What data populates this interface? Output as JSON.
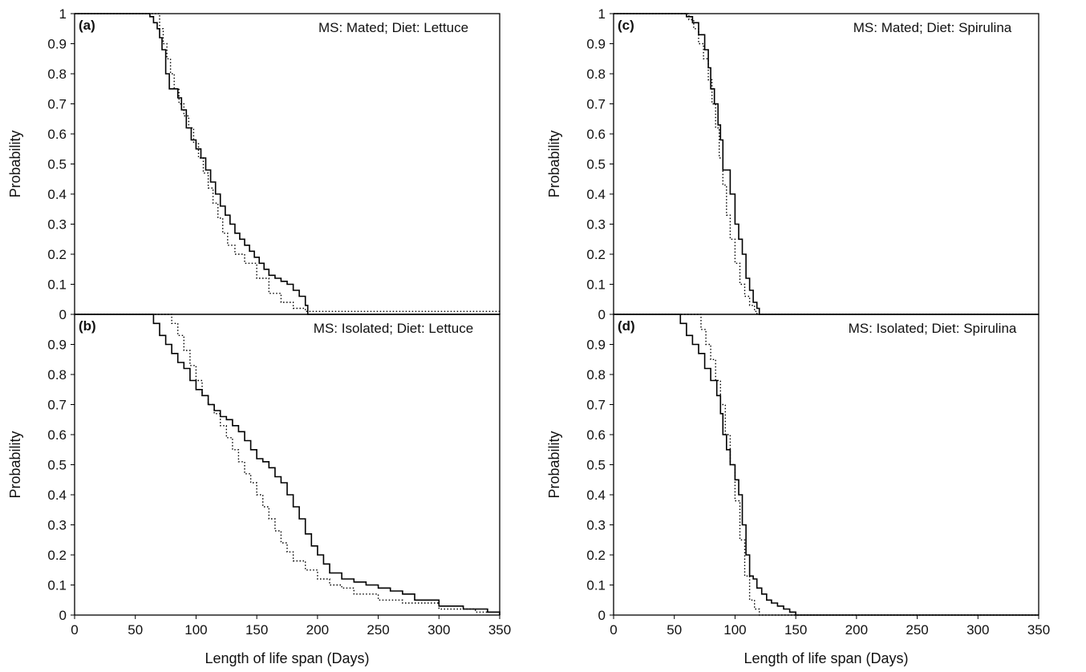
{
  "chart_data": [
    {
      "type": "line",
      "step": true,
      "panel_label": "(a)",
      "annotation": "MS: Mated; Diet: Lettuce",
      "xlabel": "",
      "ylabel": "Probability",
      "xlim": [
        0,
        350
      ],
      "ylim": [
        0,
        1
      ],
      "xticks": [],
      "yticks": [
        "0",
        "0.1",
        "0.2",
        "0.3",
        "0.4",
        "0.5",
        "0.6",
        "0.7",
        "0.8",
        "0.9",
        "1"
      ],
      "grid": false,
      "series": [
        {
          "style": "solid",
          "x": [
            0,
            55,
            62,
            65,
            68,
            70,
            72,
            75,
            78,
            85,
            88,
            92,
            96,
            100,
            104,
            108,
            112,
            116,
            120,
            124,
            128,
            132,
            136,
            140,
            144,
            148,
            152,
            156,
            160,
            165,
            170,
            175,
            180,
            185,
            190,
            192,
            350
          ],
          "y": [
            1,
            1,
            0.99,
            0.97,
            0.95,
            0.92,
            0.88,
            0.8,
            0.75,
            0.72,
            0.68,
            0.62,
            0.58,
            0.55,
            0.52,
            0.48,
            0.44,
            0.4,
            0.36,
            0.33,
            0.3,
            0.27,
            0.25,
            0.23,
            0.21,
            0.19,
            0.17,
            0.15,
            0.13,
            0.12,
            0.11,
            0.1,
            0.08,
            0.06,
            0.03,
            0,
            0
          ]
        },
        {
          "style": "dotted",
          "x": [
            0,
            68,
            70,
            73,
            76,
            79,
            82,
            86,
            90,
            94,
            98,
            102,
            106,
            110,
            114,
            118,
            122,
            126,
            132,
            140,
            150,
            160,
            170,
            180,
            190,
            350
          ],
          "y": [
            1,
            1,
            0.95,
            0.9,
            0.85,
            0.8,
            0.75,
            0.7,
            0.66,
            0.62,
            0.57,
            0.52,
            0.47,
            0.42,
            0.37,
            0.32,
            0.27,
            0.23,
            0.2,
            0.17,
            0.12,
            0.07,
            0.04,
            0.02,
            0.01,
            0
          ]
        }
      ]
    },
    {
      "type": "line",
      "step": true,
      "panel_label": "(b)",
      "annotation": "MS: Isolated; Diet: Lettuce",
      "xlabel": "Length of life span (Days)",
      "ylabel": "Probability",
      "xlim": [
        0,
        350
      ],
      "ylim": [
        0,
        1
      ],
      "xticks": [
        "0",
        "50",
        "100",
        "150",
        "200",
        "250",
        "300",
        "350"
      ],
      "yticks": [
        "0",
        "0.1",
        "0.2",
        "0.3",
        "0.4",
        "0.5",
        "0.6",
        "0.7",
        "0.8",
        "0.9"
      ],
      "grid": false,
      "series": [
        {
          "style": "solid",
          "x": [
            0,
            60,
            65,
            70,
            75,
            80,
            85,
            90,
            95,
            100,
            105,
            110,
            115,
            120,
            125,
            130,
            135,
            140,
            145,
            150,
            155,
            160,
            165,
            170,
            175,
            180,
            185,
            190,
            195,
            200,
            205,
            210,
            220,
            230,
            240,
            250,
            260,
            270,
            280,
            300,
            320,
            340,
            350
          ],
          "y": [
            1,
            1,
            0.97,
            0.93,
            0.9,
            0.87,
            0.84,
            0.82,
            0.78,
            0.75,
            0.73,
            0.7,
            0.68,
            0.66,
            0.65,
            0.63,
            0.61,
            0.58,
            0.55,
            0.52,
            0.51,
            0.49,
            0.46,
            0.44,
            0.4,
            0.36,
            0.32,
            0.27,
            0.23,
            0.2,
            0.17,
            0.14,
            0.12,
            0.11,
            0.1,
            0.09,
            0.08,
            0.07,
            0.05,
            0.03,
            0.02,
            0.01,
            0
          ]
        },
        {
          "style": "dotted",
          "x": [
            0,
            75,
            80,
            85,
            90,
            95,
            100,
            105,
            110,
            115,
            120,
            125,
            130,
            135,
            140,
            145,
            150,
            155,
            160,
            165,
            170,
            175,
            180,
            190,
            200,
            210,
            220,
            230,
            250,
            270,
            300,
            330,
            350
          ],
          "y": [
            1,
            1,
            0.97,
            0.93,
            0.88,
            0.83,
            0.78,
            0.73,
            0.7,
            0.67,
            0.63,
            0.59,
            0.55,
            0.51,
            0.47,
            0.44,
            0.4,
            0.36,
            0.32,
            0.28,
            0.24,
            0.21,
            0.18,
            0.15,
            0.12,
            0.1,
            0.09,
            0.07,
            0.05,
            0.04,
            0.02,
            0.01,
            0
          ]
        }
      ]
    },
    {
      "type": "line",
      "step": true,
      "panel_label": "(c)",
      "annotation": "MS: Mated; Diet: Spirulina",
      "xlabel": "",
      "ylabel": "Probability",
      "xlim": [
        0,
        350
      ],
      "ylim": [
        0,
        1
      ],
      "xticks": [],
      "yticks": [
        "0",
        "0.1",
        "0.2",
        "0.3",
        "0.4",
        "0.5",
        "0.6",
        "0.7",
        "0.8",
        "0.9",
        "1"
      ],
      "grid": false,
      "series": [
        {
          "style": "solid",
          "x": [
            0,
            55,
            60,
            65,
            70,
            75,
            78,
            80,
            83,
            86,
            88,
            90,
            93,
            96,
            100,
            103,
            106,
            109,
            112,
            115,
            118,
            120,
            350
          ],
          "y": [
            1,
            1,
            0.99,
            0.97,
            0.93,
            0.88,
            0.82,
            0.75,
            0.7,
            0.63,
            0.58,
            0.48,
            0.48,
            0.4,
            0.3,
            0.25,
            0.2,
            0.12,
            0.08,
            0.04,
            0.02,
            0,
            0
          ]
        },
        {
          "style": "dotted",
          "x": [
            0,
            58,
            62,
            66,
            70,
            74,
            78,
            81,
            84,
            87,
            90,
            93,
            96,
            100,
            104,
            108,
            112,
            116,
            118,
            350
          ],
          "y": [
            1,
            1,
            0.98,
            0.95,
            0.9,
            0.85,
            0.78,
            0.7,
            0.62,
            0.52,
            0.43,
            0.33,
            0.25,
            0.17,
            0.1,
            0.06,
            0.03,
            0.01,
            0,
            0
          ]
        }
      ]
    },
    {
      "type": "line",
      "step": true,
      "panel_label": "(d)",
      "annotation": "MS: Isolated; Diet: Spirulina",
      "xlabel": "Length of life span (Days)",
      "ylabel": "Probability",
      "xlim": [
        0,
        350
      ],
      "ylim": [
        0,
        1
      ],
      "xticks": [
        "0",
        "50",
        "100",
        "150",
        "200",
        "250",
        "300",
        "350"
      ],
      "yticks": [
        "0",
        "0.1",
        "0.2",
        "0.3",
        "0.4",
        "0.5",
        "0.6",
        "0.7",
        "0.8",
        "0.9"
      ],
      "grid": false,
      "series": [
        {
          "style": "solid",
          "x": [
            0,
            50,
            55,
            60,
            65,
            70,
            75,
            80,
            85,
            88,
            90,
            93,
            96,
            100,
            103,
            106,
            109,
            112,
            115,
            118,
            122,
            126,
            130,
            135,
            140,
            145,
            150,
            350
          ],
          "y": [
            1,
            1,
            0.97,
            0.93,
            0.9,
            0.87,
            0.82,
            0.78,
            0.73,
            0.67,
            0.6,
            0.55,
            0.5,
            0.45,
            0.4,
            0.3,
            0.2,
            0.13,
            0.12,
            0.09,
            0.07,
            0.05,
            0.04,
            0.03,
            0.02,
            0.01,
            0,
            0
          ]
        },
        {
          "style": "dotted",
          "x": [
            0,
            68,
            72,
            76,
            80,
            84,
            88,
            92,
            96,
            100,
            104,
            108,
            112,
            116,
            120,
            350
          ],
          "y": [
            1,
            1,
            0.95,
            0.9,
            0.85,
            0.78,
            0.7,
            0.6,
            0.5,
            0.38,
            0.25,
            0.13,
            0.05,
            0.02,
            0,
            0
          ]
        }
      ]
    }
  ]
}
